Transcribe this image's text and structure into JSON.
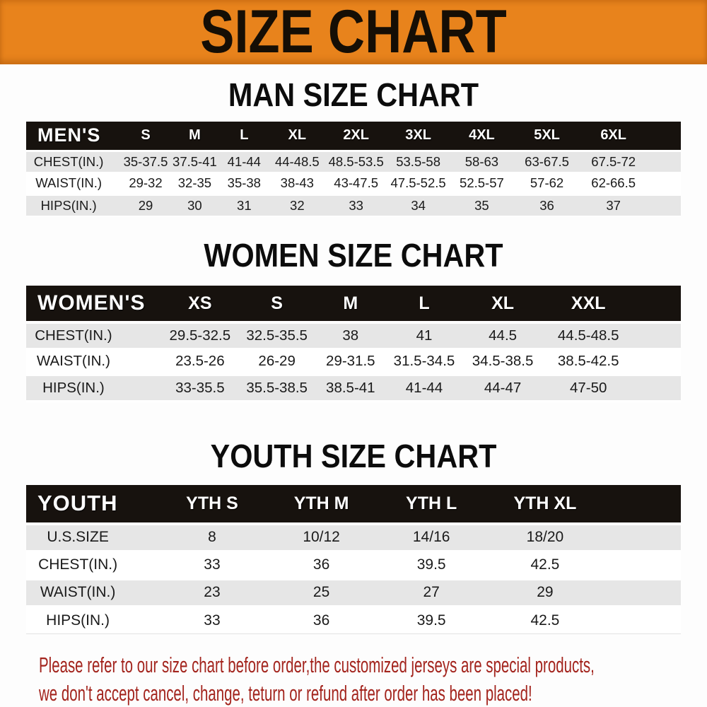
{
  "banner": {
    "title": "SIZE CHART"
  },
  "sections": [
    {
      "id": "men",
      "title": "MAN SIZE CHART",
      "header_label": "MEN'S",
      "columns": [
        "S",
        "M",
        "L",
        "XL",
        "2XL",
        "3XL",
        "4XL",
        "5XL",
        "6XL"
      ],
      "rows": [
        {
          "label": "CHEST(IN.)",
          "values": [
            "35-37.5",
            "37.5-41",
            "41-44",
            "44-48.5",
            "48.5-53.5",
            "53.5-58",
            "58-63",
            "63-67.5",
            "67.5-72"
          ]
        },
        {
          "label": "WAIST(IN.)",
          "values": [
            "29-32",
            "32-35",
            "35-38",
            "38-43",
            "43-47.5",
            "47.5-52.5",
            "52.5-57",
            "57-62",
            "62-66.5"
          ]
        },
        {
          "label": "HIPS(IN.)",
          "values": [
            "29",
            "30",
            "31",
            "32",
            "33",
            "34",
            "35",
            "36",
            "37"
          ]
        }
      ]
    },
    {
      "id": "women",
      "title": "WOMEN SIZE CHART",
      "header_label": "WOMEN'S",
      "columns": [
        "XS",
        "S",
        "M",
        "L",
        "XL",
        "XXL"
      ],
      "rows": [
        {
          "label": "CHEST(IN.)",
          "values": [
            "29.5-32.5",
            "32.5-35.5",
            "38",
            "41",
            "44.5",
            "44.5-48.5"
          ]
        },
        {
          "label": "WAIST(IN.)",
          "values": [
            "23.5-26",
            "26-29",
            "29-31.5",
            "31.5-34.5",
            "34.5-38.5",
            "38.5-42.5"
          ]
        },
        {
          "label": "HIPS(IN.)",
          "values": [
            "33-35.5",
            "35.5-38.5",
            "38.5-41",
            "41-44",
            "44-47",
            "47-50"
          ]
        }
      ]
    },
    {
      "id": "youth",
      "title": "YOUTH SIZE CHART",
      "header_label": "YOUTH",
      "columns": [
        "YTH S",
        "YTH M",
        "YTH L",
        "YTH XL"
      ],
      "rows": [
        {
          "label": "U.S.SIZE",
          "values": [
            "8",
            "10/12",
            "14/16",
            "18/20"
          ]
        },
        {
          "label": "CHEST(IN.)",
          "values": [
            "33",
            "36",
            "39.5",
            "42.5"
          ]
        },
        {
          "label": "WAIST(IN.)",
          "values": [
            "23",
            "25",
            "27",
            "29"
          ]
        },
        {
          "label": "HIPS(IN.)",
          "values": [
            "33",
            "36",
            "39.5",
            "42.5"
          ]
        }
      ]
    }
  ],
  "footnote": {
    "line1": "Please refer to our size chart before order,the customized jerseys are special products,",
    "line2": "we don't accept cancel, change, teturn or refund after order has been placed!"
  },
  "colors": {
    "banner_bg": "#E8831C",
    "header_bg": "#17120E",
    "shaded_row": "#E6E6E6",
    "footnote_red": "#A3241D",
    "text_dark": "#1A1A1A"
  }
}
